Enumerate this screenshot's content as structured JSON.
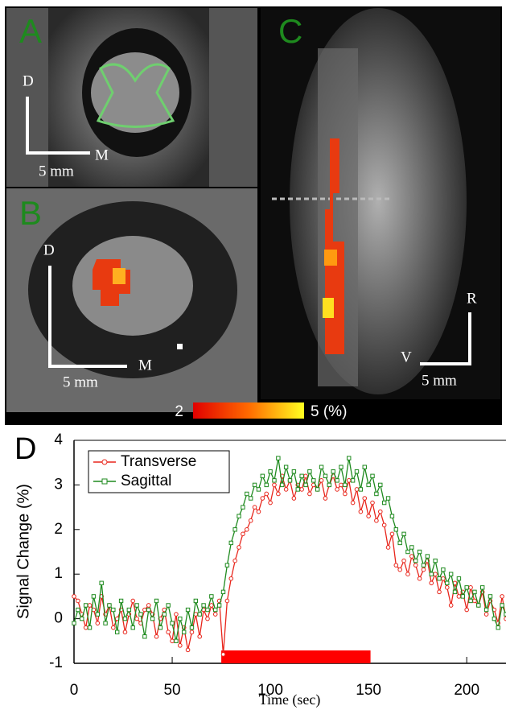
{
  "panels": {
    "A": {
      "label": "A",
      "axis_d": "D",
      "axis_m": "M",
      "scale": "5 mm"
    },
    "B": {
      "label": "B",
      "axis_d": "D",
      "axis_m": "M",
      "scale": "5 mm"
    },
    "C": {
      "label": "C",
      "axis_r": "R",
      "axis_v": "V",
      "scale": "5 mm"
    },
    "colorbar": {
      "min_label": "2",
      "max_label": "5 (%)"
    }
  },
  "chart_data": {
    "type": "line",
    "panel_label": "D",
    "x_label": "Time (sec)",
    "y_label": "Signal Change (%)",
    "x": [
      0,
      2,
      4,
      6,
      8,
      10,
      12,
      14,
      16,
      18,
      20,
      22,
      24,
      26,
      28,
      30,
      32,
      34,
      36,
      38,
      40,
      42,
      44,
      46,
      48,
      50,
      52,
      54,
      56,
      58,
      60,
      62,
      64,
      66,
      68,
      70,
      72,
      74,
      76,
      78,
      80,
      82,
      84,
      86,
      88,
      90,
      92,
      94,
      96,
      98,
      100,
      102,
      104,
      106,
      108,
      110,
      112,
      114,
      116,
      118,
      120,
      122,
      124,
      126,
      128,
      130,
      132,
      134,
      136,
      138,
      140,
      142,
      144,
      146,
      148,
      150,
      152,
      154,
      156,
      158,
      160,
      162,
      164,
      166,
      168,
      170,
      172,
      174,
      176,
      178,
      180,
      182,
      184,
      186,
      188,
      190,
      192,
      194,
      196,
      198,
      200,
      202,
      204,
      206,
      208,
      210,
      212,
      214,
      216,
      218,
      220
    ],
    "series": [
      {
        "name": "Transverse",
        "color": "#e8251b",
        "marker": "circle",
        "values": [
          0.5,
          0.4,
          0.1,
          -0.2,
          0.3,
          0.2,
          -0.1,
          0.5,
          0.1,
          0.3,
          -0.2,
          0.0,
          0.2,
          -0.3,
          0.1,
          0.4,
          0.0,
          -0.1,
          0.2,
          0.3,
          0.1,
          -0.4,
          0.0,
          0.2,
          -0.3,
          -0.5,
          0.1,
          -0.6,
          -0.2,
          -0.7,
          -0.3,
          0.1,
          -0.4,
          0.2,
          0.0,
          0.3,
          0.1,
          0.4,
          -0.8,
          0.4,
          0.9,
          1.3,
          1.6,
          1.9,
          2.0,
          2.2,
          2.5,
          2.4,
          2.7,
          2.8,
          2.6,
          3.0,
          2.8,
          3.2,
          2.9,
          3.1,
          2.7,
          3.0,
          2.9,
          3.2,
          2.8,
          3.0,
          2.9,
          3.1,
          2.7,
          3.0,
          3.2,
          2.9,
          3.0,
          2.8,
          3.1,
          2.6,
          2.9,
          2.4,
          2.7,
          2.3,
          2.6,
          2.2,
          2.4,
          2.1,
          1.6,
          1.9,
          1.2,
          1.1,
          1.3,
          1.0,
          1.4,
          1.2,
          0.9,
          1.1,
          1.3,
          0.8,
          1.0,
          0.6,
          0.9,
          0.7,
          0.3,
          0.8,
          0.5,
          0.6,
          0.2,
          0.7,
          0.4,
          0.3,
          0.6,
          0.1,
          0.4,
          0.2,
          -0.1,
          0.5,
          0.0
        ]
      },
      {
        "name": "Sagittal",
        "color": "#1e8a1e",
        "marker": "square",
        "values": [
          -0.1,
          0.2,
          0.0,
          0.3,
          -0.2,
          0.5,
          0.1,
          0.8,
          -0.1,
          0.3,
          0.2,
          -0.3,
          0.4,
          0.0,
          0.2,
          -0.2,
          0.3,
          0.1,
          -0.4,
          0.2,
          0.0,
          0.4,
          -0.2,
          0.1,
          0.3,
          -0.1,
          -0.5,
          0.0,
          -0.3,
          0.2,
          -0.2,
          0.4,
          0.1,
          0.3,
          0.2,
          0.5,
          0.2,
          0.3,
          0.6,
          1.2,
          1.7,
          2.0,
          2.3,
          2.5,
          2.8,
          2.7,
          3.0,
          2.9,
          3.2,
          3.0,
          3.3,
          3.1,
          3.6,
          3.0,
          3.4,
          3.1,
          3.3,
          2.9,
          3.2,
          3.0,
          3.3,
          3.1,
          2.9,
          3.4,
          3.2,
          3.0,
          3.3,
          3.1,
          3.4,
          3.0,
          3.6,
          3.1,
          3.3,
          2.9,
          3.4,
          3.0,
          3.2,
          2.8,
          3.0,
          2.6,
          2.7,
          2.3,
          2.0,
          1.7,
          1.9,
          1.5,
          1.6,
          1.3,
          1.5,
          1.2,
          1.4,
          1.0,
          1.3,
          0.9,
          1.1,
          0.8,
          1.0,
          0.6,
          0.9,
          0.5,
          0.7,
          0.4,
          0.6,
          0.3,
          0.7,
          0.2,
          0.5,
          0.0,
          -0.2,
          0.3,
          0.1
        ]
      }
    ],
    "xlim": [
      0,
      220
    ],
    "xticks": [
      0,
      50,
      100,
      150,
      200
    ],
    "ylim": [
      -1,
      4
    ],
    "yticks": [
      -1,
      0,
      1,
      2,
      3,
      4
    ],
    "bar": {
      "x": [
        75,
        151
      ],
      "color": "#ff0000"
    },
    "legend": "upper-left"
  }
}
